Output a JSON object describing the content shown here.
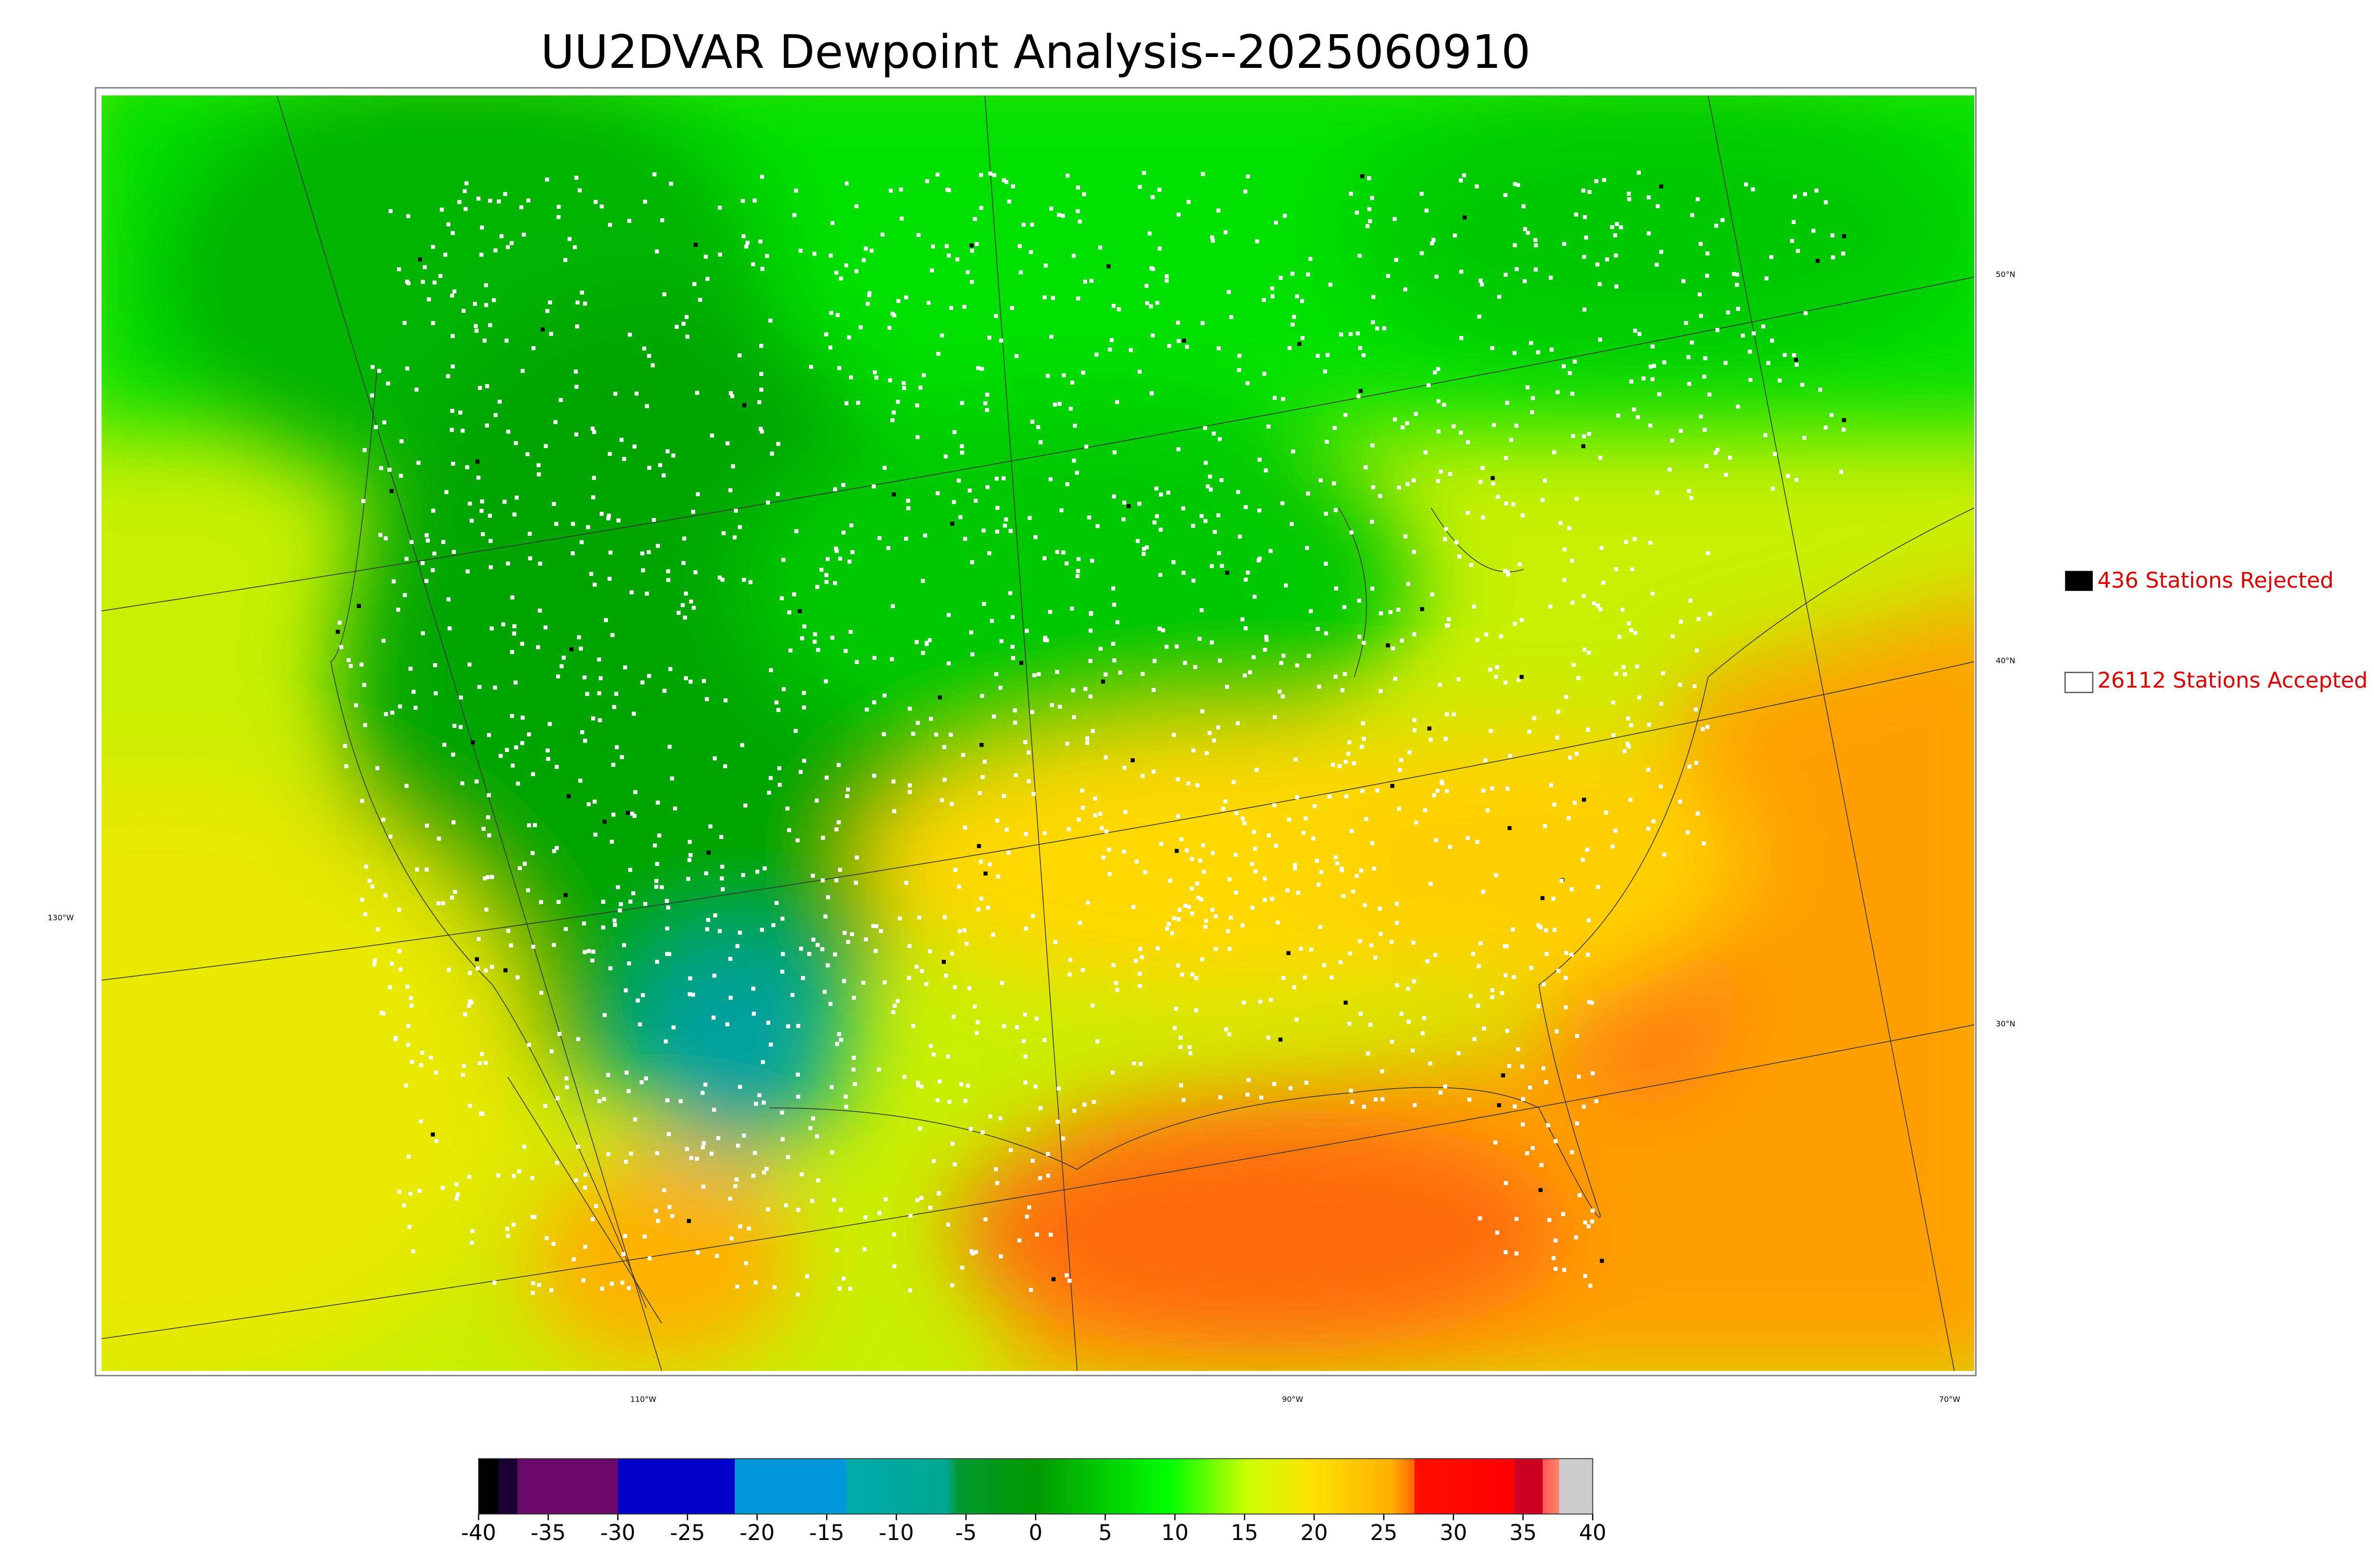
{
  "title": "UU2DVAR Dewpoint Analysis--2025060910",
  "legend": [
    {
      "text": "436 Stations Rejected"
    },
    {
      "text": "26112 Stations Accepted"
    }
  ],
  "latitude_labels": [
    "50°N",
    "40°N",
    "30°N"
  ],
  "longitude_labels": [
    "130°W",
    "110°W",
    "90°W",
    "70°W"
  ],
  "colorbar": {
    "range": [
      -40,
      40
    ],
    "ticks": [
      -40,
      -35,
      -30,
      -25,
      -20,
      -15,
      -10,
      -5,
      0,
      5,
      10,
      15,
      20,
      25,
      30,
      35,
      40
    ]
  }
}
